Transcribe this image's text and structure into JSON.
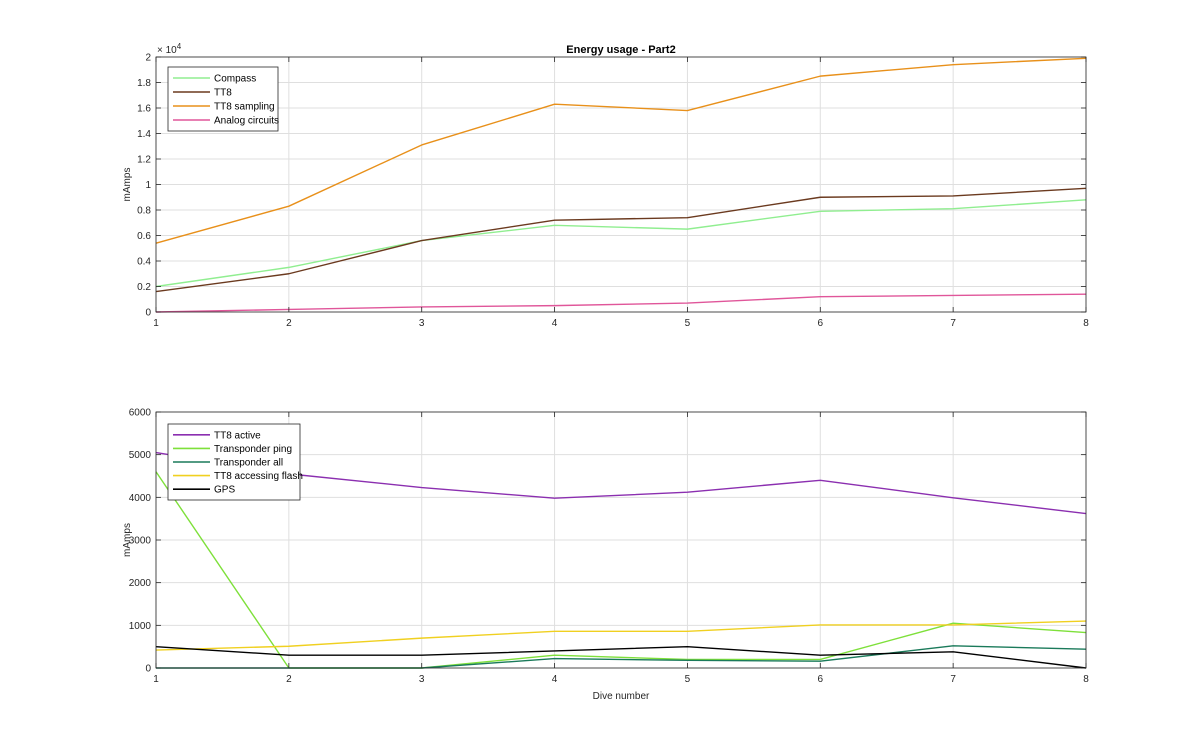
{
  "figure": {
    "chart_data": [
      {
        "type": "line",
        "title": "Energy usage - Part2",
        "xlabel": "",
        "ylabel": "mAmps",
        "exponent_label": "× 10",
        "exponent_power": "4",
        "x": [
          1,
          2,
          3,
          4,
          5,
          6,
          7,
          8
        ],
        "xlim": [
          1,
          8
        ],
        "ylim": [
          0,
          20000
        ],
        "xticks": [
          "1",
          "2",
          "3",
          "4",
          "5",
          "6",
          "7",
          "8"
        ],
        "yticks": [
          0,
          2000,
          4000,
          6000,
          8000,
          10000,
          12000,
          14000,
          16000,
          18000,
          20000
        ],
        "ytick_labels": [
          "0",
          "0.2",
          "0.4",
          "0.6",
          "0.8",
          "1",
          "1.2",
          "1.4",
          "1.6",
          "1.8",
          "2"
        ],
        "grid": true,
        "legend_position": "top-left",
        "series": [
          {
            "name": "Compass",
            "color": "#90ee90",
            "values": [
              2000,
              3500,
              5600,
              6800,
              6500,
              7900,
              8100,
              8800
            ]
          },
          {
            "name": "TT8",
            "color": "#6b3a1f",
            "values": [
              1600,
              3000,
              5600,
              7200,
              7400,
              9000,
              9100,
              9700
            ]
          },
          {
            "name": "TT8 sampling",
            "color": "#e8901a",
            "values": [
              5400,
              8300,
              13100,
              16300,
              15800,
              18500,
              19400,
              19900
            ]
          },
          {
            "name": "Analog circuits",
            "color": "#e0569a",
            "values": [
              0,
              200,
              400,
              500,
              700,
              1200,
              1300,
              1400
            ]
          }
        ]
      },
      {
        "type": "line",
        "title": "",
        "xlabel": "Dive number",
        "ylabel": "mAmps",
        "x": [
          1,
          2,
          3,
          4,
          5,
          6,
          7,
          8
        ],
        "xlim": [
          1,
          8
        ],
        "ylim": [
          0,
          6000
        ],
        "xticks": [
          "1",
          "2",
          "3",
          "4",
          "5",
          "6",
          "7",
          "8"
        ],
        "yticks": [
          0,
          1000,
          2000,
          3000,
          4000,
          5000,
          6000
        ],
        "ytick_labels": [
          "0",
          "1000",
          "2000",
          "3000",
          "4000",
          "5000",
          "6000"
        ],
        "grid": true,
        "legend_position": "top-left",
        "series": [
          {
            "name": "TT8 active",
            "color": "#8b2fb0",
            "values": [
              5050,
              4550,
              4230,
              3980,
              4120,
              4400,
              3990,
              3620
            ]
          },
          {
            "name": "Transponder ping",
            "color": "#7ee03a",
            "values": [
              4600,
              0,
              0,
              300,
              200,
              200,
              1050,
              830
            ]
          },
          {
            "name": "Transponder all",
            "color": "#1a7a5a",
            "values": [
              0,
              0,
              0,
              220,
              180,
              160,
              520,
              440
            ]
          },
          {
            "name": "TT8 accessing flash",
            "color": "#f0d020",
            "values": [
              420,
              510,
              700,
              860,
              860,
              1010,
              1010,
              1100
            ]
          },
          {
            "name": "GPS",
            "color": "#000000",
            "values": [
              500,
              300,
              300,
              400,
              500,
              300,
              380,
              0
            ]
          }
        ]
      }
    ]
  }
}
